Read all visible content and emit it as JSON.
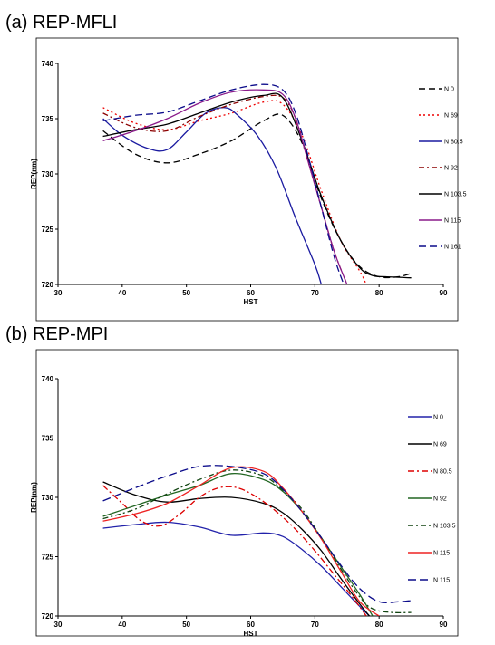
{
  "panels": [
    {
      "title": "(a) REP-MFLI",
      "chart_data": {
        "type": "line",
        "xlabel": "HST",
        "ylabel": "REP(nm)",
        "xlim": [
          30,
          90
        ],
        "ylim": [
          720,
          740
        ],
        "xticks": [
          30,
          40,
          50,
          60,
          70,
          80,
          90
        ],
        "yticks": [
          720,
          725,
          730,
          735,
          740
        ],
        "grid": false,
        "legend_position": "right",
        "series": [
          {
            "name": "N 0",
            "color": "#000000",
            "dash": "7,4",
            "x": [
              37,
              42,
              47,
              52,
              57,
              62,
              65,
              68,
              71,
              74,
              77,
              80,
              83,
              85
            ],
            "y": [
              733.9,
              731.8,
              731.0,
              731.8,
              733.0,
              734.8,
              735.3,
              732.8,
              727.8,
              724.0,
              721.6,
              720.7,
              720.7,
              721.0
            ]
          },
          {
            "name": "N 69",
            "color": "#ee0000",
            "dash": "2,3",
            "x": [
              37,
              42,
              47,
              52,
              57,
              62,
              65,
              68,
              71,
              74,
              77,
              78
            ],
            "y": [
              736.0,
              734.6,
              734.0,
              734.8,
              735.5,
              736.5,
              736.3,
              733.5,
              728.5,
              724.0,
              721.2,
              720.0
            ]
          },
          {
            "name": "N 80.5",
            "color": "#1a1aa0",
            "dash": "",
            "x": [
              37,
              40,
              44,
              47,
              50,
              53,
              56,
              58,
              61,
              64,
              67,
              70,
              71
            ],
            "y": [
              735.0,
              733.5,
              732.3,
              732.2,
              733.8,
              735.5,
              736.0,
              735.3,
              733.5,
              730.5,
              726.0,
              721.8,
              720.0
            ]
          },
          {
            "name": "N 92",
            "color": "#8b0000",
            "dash": "6,3,2,3",
            "x": [
              37,
              42,
              47,
              52,
              57,
              62,
              65,
              67,
              69,
              71,
              73,
              75
            ],
            "y": [
              735.5,
              734.2,
              733.9,
              735.2,
              736.3,
              737.0,
              736.9,
              735.0,
              731.0,
              727.0,
              723.0,
              720.0
            ]
          },
          {
            "name": "N 103.5",
            "color": "#000000",
            "dash": "",
            "x": [
              37,
              42,
              47,
              52,
              57,
              62,
              65,
              68,
              71,
              74,
              77,
              79,
              81,
              85
            ],
            "y": [
              733.4,
              734.0,
              734.5,
              735.5,
              736.5,
              737.1,
              736.9,
              733.0,
              728.0,
              724.0,
              721.5,
              720.8,
              720.7,
              720.6
            ]
          },
          {
            "name": "N 115",
            "color": "#8a1a8a",
            "dash": "",
            "x": [
              37,
              42,
              47,
              52,
              57,
              62,
              65,
              67,
              69,
              71,
              73,
              75
            ],
            "y": [
              733.0,
              733.9,
              735.0,
              736.4,
              737.4,
              737.6,
              737.2,
              735.0,
              731.0,
              727.0,
              723.0,
              720.0
            ]
          },
          {
            "name": "N 161",
            "color": "#0b0b8a",
            "dash": "8,4",
            "x": [
              37,
              42,
              47,
              52,
              57,
              62,
              65,
              67,
              69,
              71,
              73,
              74.5
            ],
            "y": [
              734.8,
              735.3,
              735.6,
              736.6,
              737.6,
              738.1,
              737.6,
              735.5,
              731.5,
              727.0,
              722.5,
              720.0
            ]
          }
        ]
      }
    },
    {
      "title": "(b) REP-MPI",
      "chart_data": {
        "type": "line",
        "xlabel": "HST",
        "ylabel": "REP(nm)",
        "xlim": [
          30,
          90
        ],
        "ylim": [
          720,
          740
        ],
        "xticks": [
          30,
          40,
          50,
          60,
          70,
          80,
          90
        ],
        "yticks": [
          720,
          725,
          730,
          735,
          740
        ],
        "grid": false,
        "legend_position": "right",
        "series": [
          {
            "name": "N 0",
            "color": "#2222aa",
            "dash": "",
            "x": [
              37,
              42,
              47,
              52,
              57,
              62,
              65,
              68,
              71,
              74,
              77,
              78.5
            ],
            "y": [
              727.4,
              727.7,
              727.9,
              727.5,
              726.8,
              727.0,
              726.7,
              725.6,
              724.2,
              722.5,
              720.8,
              720.0
            ]
          },
          {
            "name": "N 69",
            "color": "#000000",
            "dash": "",
            "x": [
              37,
              42,
              47,
              52,
              57,
              62,
              65,
              68,
              71,
              74,
              77,
              78.5
            ],
            "y": [
              731.3,
              730.2,
              729.6,
              729.9,
              730.0,
              729.5,
              728.7,
              727.3,
              725.5,
              723.2,
              721.0,
              720.0
            ]
          },
          {
            "name": "N 80.5",
            "color": "#dd0000",
            "dash": "7,3,2,3",
            "x": [
              37,
              40,
              43,
              46,
              49,
              52,
              55,
              58,
              61,
              64,
              67,
              70,
              73,
              76,
              78
            ],
            "y": [
              731.0,
              729.5,
              728.0,
              727.6,
              728.6,
              730.0,
              730.8,
              730.8,
              730.0,
              728.8,
              727.3,
              725.5,
              723.5,
              721.5,
              720.0
            ]
          },
          {
            "name": "N 92",
            "color": "#226622",
            "dash": "",
            "x": [
              37,
              42,
              47,
              52,
              57,
              62,
              65,
              68,
              71,
              74,
              77,
              79
            ],
            "y": [
              728.4,
              729.3,
              730.2,
              731.0,
              732.0,
              731.5,
              730.5,
              728.8,
              726.6,
              724.2,
              721.8,
              720.0
            ]
          },
          {
            "name": "N 103.5",
            "color": "#114411",
            "dash": "6,3,2,3",
            "x": [
              37,
              42,
              47,
              52,
              57,
              62,
              65,
              68,
              71,
              74,
              77,
              79,
              82,
              85
            ],
            "y": [
              728.2,
              729.0,
              730.3,
              731.5,
              732.3,
              731.8,
              730.6,
              729.0,
              726.6,
              724.0,
              721.6,
              720.6,
              720.3,
              720.3
            ]
          },
          {
            "name": "N 115",
            "color": "#ee2222",
            "dash": "",
            "x": [
              37,
              42,
              47,
              52,
              57,
              62,
              65,
              68,
              71,
              74,
              77,
              80
            ],
            "y": [
              728.0,
              728.6,
              729.5,
              731.0,
              732.5,
              732.2,
              730.8,
              728.8,
              726.5,
              723.8,
              721.2,
              720.0
            ]
          },
          {
            "name": "N 115",
            "color": "#0b0b8a",
            "dash": "9,4",
            "x": [
              37,
              42,
              47,
              52,
              57,
              62,
              65,
              68,
              71,
              74,
              77,
              80,
              83,
              85
            ],
            "y": [
              729.7,
              730.8,
              731.8,
              732.6,
              732.6,
              732.0,
              730.7,
              728.8,
              726.6,
              724.3,
              722.3,
              721.2,
              721.2,
              721.3
            ]
          }
        ]
      }
    }
  ]
}
